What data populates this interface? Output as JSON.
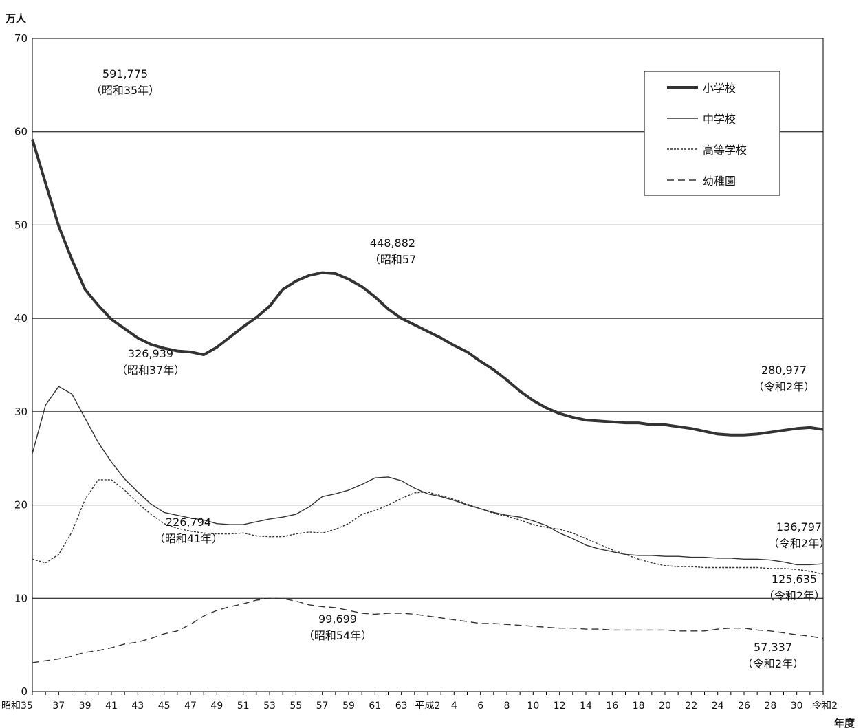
{
  "chart_data": {
    "type": "line",
    "ylabel": "万人",
    "xlabel": "年度",
    "ylim": [
      0,
      70
    ],
    "yticks": [
      0,
      10,
      20,
      30,
      40,
      50,
      60,
      70
    ],
    "grid": true,
    "legend_position": "top-right",
    "x_tick_labels": [
      "昭和35",
      "37",
      "39",
      "41",
      "43",
      "45",
      "47",
      "49",
      "51",
      "53",
      "55",
      "57",
      "59",
      "61",
      "63",
      "平成2",
      "4",
      "6",
      "8",
      "10",
      "12",
      "14",
      "16",
      "18",
      "20",
      "22",
      "24",
      "26",
      "28",
      "30",
      "令和2"
    ],
    "x": [
      "昭和35",
      "36",
      "37",
      "38",
      "39",
      "40",
      "41",
      "42",
      "43",
      "44",
      "45",
      "46",
      "47",
      "48",
      "49",
      "50",
      "51",
      "52",
      "53",
      "54",
      "55",
      "56",
      "57",
      "58",
      "59",
      "60",
      "61",
      "62",
      "63",
      "平成元",
      "平成2",
      "3",
      "4",
      "5",
      "6",
      "7",
      "8",
      "9",
      "10",
      "11",
      "12",
      "13",
      "14",
      "15",
      "16",
      "17",
      "18",
      "19",
      "20",
      "21",
      "22",
      "23",
      "24",
      "25",
      "26",
      "27",
      "28",
      "29",
      "30",
      "令和元",
      "令和2"
    ],
    "series": [
      {
        "name": "小学校",
        "style": "thick",
        "values": [
          59.2,
          54.5,
          49.9,
          46.3,
          43.1,
          41.4,
          39.9,
          38.9,
          37.9,
          37.2,
          36.8,
          36.5,
          36.4,
          36.1,
          36.9,
          38.0,
          39.1,
          40.1,
          41.3,
          43.1,
          44.0,
          44.6,
          44.9,
          44.8,
          44.2,
          43.4,
          42.3,
          41.0,
          40.0,
          39.3,
          38.6,
          37.9,
          37.1,
          36.4,
          35.4,
          34.5,
          33.4,
          32.2,
          31.2,
          30.4,
          29.8,
          29.4,
          29.1,
          29.0,
          28.9,
          28.8,
          28.8,
          28.6,
          28.6,
          28.4,
          28.2,
          27.9,
          27.6,
          27.5,
          27.5,
          27.6,
          27.8,
          28.0,
          28.2,
          28.3,
          28.1
        ]
      },
      {
        "name": "中学校",
        "style": "thin",
        "values": [
          25.5,
          30.7,
          32.7,
          31.9,
          29.3,
          26.7,
          24.6,
          22.8,
          21.4,
          20.1,
          19.2,
          18.9,
          18.6,
          18.4,
          18.0,
          17.9,
          17.9,
          18.2,
          18.5,
          18.7,
          19.0,
          19.8,
          20.9,
          21.2,
          21.6,
          22.2,
          22.9,
          23.0,
          22.6,
          21.8,
          21.2,
          20.9,
          20.5,
          20.0,
          19.6,
          19.2,
          18.9,
          18.7,
          18.3,
          17.8,
          17.0,
          16.4,
          15.7,
          15.3,
          15.0,
          14.7,
          14.6,
          14.6,
          14.5,
          14.5,
          14.4,
          14.4,
          14.3,
          14.3,
          14.2,
          14.2,
          14.1,
          13.9,
          13.6,
          13.6,
          13.7
        ]
      },
      {
        "name": "高等学校",
        "style": "dotted",
        "values": [
          14.2,
          13.8,
          14.7,
          17.1,
          20.6,
          22.7,
          22.7,
          21.6,
          20.2,
          19.0,
          18.0,
          17.5,
          17.2,
          17.0,
          16.9,
          16.9,
          17.0,
          16.7,
          16.6,
          16.6,
          16.9,
          17.1,
          17.0,
          17.4,
          18.0,
          19.0,
          19.4,
          20.0,
          20.7,
          21.3,
          21.4,
          21.0,
          20.6,
          20.1,
          19.6,
          19.1,
          18.8,
          18.4,
          17.9,
          17.6,
          17.4,
          17.0,
          16.4,
          15.8,
          15.2,
          14.7,
          14.2,
          13.8,
          13.5,
          13.4,
          13.4,
          13.3,
          13.3,
          13.3,
          13.3,
          13.3,
          13.2,
          13.2,
          13.1,
          12.9,
          12.6
        ]
      },
      {
        "name": "幼稚園",
        "style": "dashed",
        "values": [
          3.1,
          3.3,
          3.5,
          3.8,
          4.2,
          4.4,
          4.7,
          5.1,
          5.3,
          5.7,
          6.2,
          6.5,
          7.2,
          8.1,
          8.7,
          9.1,
          9.4,
          9.8,
          10.0,
          9.97,
          9.7,
          9.3,
          9.1,
          9.0,
          8.7,
          8.4,
          8.3,
          8.4,
          8.4,
          8.3,
          8.1,
          7.9,
          7.7,
          7.5,
          7.3,
          7.3,
          7.2,
          7.1,
          7.0,
          6.9,
          6.8,
          6.8,
          6.7,
          6.7,
          6.6,
          6.6,
          6.6,
          6.6,
          6.6,
          6.5,
          6.5,
          6.5,
          6.7,
          6.8,
          6.8,
          6.6,
          6.5,
          6.3,
          6.1,
          5.95,
          5.7
        ]
      }
    ],
    "annotations": [
      {
        "lines": [
          "591,775",
          "（昭和35年）"
        ]
      },
      {
        "lines": [
          "448,882",
          "（昭和57"
        ]
      },
      {
        "lines": [
          "326,939",
          "（昭和37年）"
        ]
      },
      {
        "lines": [
          "280,977",
          "（令和2年）"
        ]
      },
      {
        "lines": [
          "226,794",
          "（昭和41年）"
        ]
      },
      {
        "lines": [
          "136,797",
          "（令和2年）"
        ]
      },
      {
        "lines": [
          "125,635",
          "（令和2年）"
        ]
      },
      {
        "lines": [
          "99,699",
          "（昭和54年）"
        ]
      },
      {
        "lines": [
          "57,337",
          "（令和2年）"
        ]
      }
    ]
  }
}
